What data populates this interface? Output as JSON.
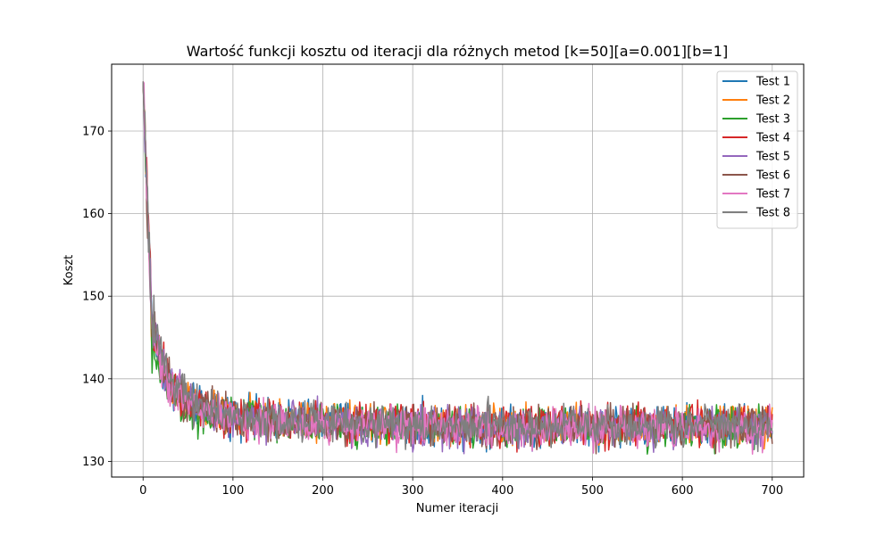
{
  "chart_data": {
    "type": "line",
    "title": "Wartość funkcji kosztu od iteracji dla różnych metod [k=50][a=0.001][b=1]",
    "xlabel": "Numer iteracji",
    "ylabel": "Koszt",
    "xlim": [
      -35,
      735
    ],
    "ylim": [
      128.1,
      178.1
    ],
    "xticks": [
      0,
      100,
      200,
      300,
      400,
      500,
      600,
      700
    ],
    "yticks": [
      130,
      140,
      150,
      160,
      170
    ],
    "grid": true,
    "legend_position": "top-right",
    "x_range": [
      0,
      700
    ],
    "shape": {
      "description": "all series decay from ~176 at iteration 0 toward a plateau near 134-135 with noise",
      "start": 176,
      "plateau": 134.3,
      "noise_amplitude": 2.4
    },
    "series": [
      {
        "name": "Test 1",
        "color": "#1f77b4",
        "samples": [
          [
            0,
            176
          ],
          [
            10,
            146
          ],
          [
            25,
            140
          ],
          [
            50,
            137
          ],
          [
            100,
            135.5
          ],
          [
            200,
            135
          ],
          [
            300,
            134.5
          ],
          [
            400,
            134.3
          ],
          [
            500,
            134.3
          ],
          [
            600,
            134.3
          ],
          [
            700,
            134.3
          ]
        ]
      },
      {
        "name": "Test 2",
        "color": "#ff7f0e",
        "samples": [
          [
            0,
            176
          ],
          [
            10,
            145
          ],
          [
            25,
            140
          ],
          [
            50,
            137
          ],
          [
            100,
            135.3
          ],
          [
            200,
            134.8
          ],
          [
            300,
            134.4
          ],
          [
            400,
            134.3
          ],
          [
            500,
            134.2
          ],
          [
            600,
            134.2
          ],
          [
            700,
            134.2
          ]
        ]
      },
      {
        "name": "Test 3",
        "color": "#2ca02c",
        "samples": [
          [
            0,
            176
          ],
          [
            10,
            144
          ],
          [
            25,
            139
          ],
          [
            50,
            136
          ],
          [
            100,
            135
          ],
          [
            200,
            134.5
          ],
          [
            300,
            134.2
          ],
          [
            400,
            134.1
          ],
          [
            500,
            134.1
          ],
          [
            600,
            134.1
          ],
          [
            700,
            134.1
          ]
        ]
      },
      {
        "name": "Test 4",
        "color": "#d62728",
        "samples": [
          [
            0,
            176
          ],
          [
            10,
            146
          ],
          [
            25,
            140
          ],
          [
            50,
            137
          ],
          [
            100,
            135.4
          ],
          [
            200,
            134.9
          ],
          [
            300,
            134.5
          ],
          [
            400,
            134.4
          ],
          [
            500,
            134.4
          ],
          [
            600,
            134.4
          ],
          [
            700,
            134.4
          ]
        ]
      },
      {
        "name": "Test 5",
        "color": "#9467bd",
        "samples": [
          [
            0,
            176
          ],
          [
            10,
            146
          ],
          [
            25,
            140
          ],
          [
            50,
            137
          ],
          [
            100,
            135.2
          ],
          [
            200,
            134.6
          ],
          [
            300,
            134.2
          ],
          [
            400,
            134.1
          ],
          [
            500,
            134.1
          ],
          [
            600,
            134.1
          ],
          [
            700,
            134.1
          ]
        ]
      },
      {
        "name": "Test 6",
        "color": "#8c564b",
        "samples": [
          [
            0,
            176
          ],
          [
            10,
            146
          ],
          [
            25,
            140
          ],
          [
            50,
            137
          ],
          [
            100,
            135.2
          ],
          [
            200,
            134.7
          ],
          [
            300,
            134.3
          ],
          [
            400,
            134.2
          ],
          [
            500,
            134.2
          ],
          [
            600,
            134.2
          ],
          [
            700,
            134.2
          ]
        ]
      },
      {
        "name": "Test 7",
        "color": "#e377c2",
        "samples": [
          [
            0,
            176
          ],
          [
            10,
            146
          ],
          [
            25,
            140
          ],
          [
            50,
            137
          ],
          [
            100,
            135
          ],
          [
            200,
            134.5
          ],
          [
            300,
            134.1
          ],
          [
            400,
            134
          ],
          [
            500,
            134
          ],
          [
            600,
            134
          ],
          [
            700,
            134
          ]
        ]
      },
      {
        "name": "Test 8",
        "color": "#7f7f7f",
        "samples": [
          [
            0,
            176
          ],
          [
            10,
            147
          ],
          [
            25,
            141
          ],
          [
            50,
            137.5
          ],
          [
            100,
            135.4
          ],
          [
            200,
            134.8
          ],
          [
            300,
            134.4
          ],
          [
            400,
            134.3
          ],
          [
            500,
            134.3
          ],
          [
            600,
            134.3
          ],
          [
            700,
            134.3
          ]
        ]
      }
    ]
  }
}
